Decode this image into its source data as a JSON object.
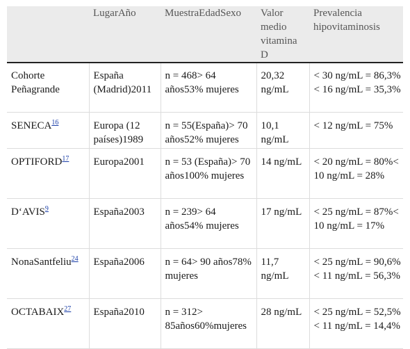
{
  "table": {
    "headers": [
      "",
      "LugarAño",
      "MuestraEdadSexo",
      "Valor medio vitamina D",
      "Prevalencia hipovitaminosis"
    ],
    "rows": [
      {
        "study": "Cohorte Peñagrande",
        "ref": "",
        "lugar": "España (Madrid)2011",
        "muestra": "n = 468> 64 años53% mujeres",
        "valor": "20,32 ng/mL",
        "prevalencia": "< 30 ng/mL = 86,3%< 16 ng/mL = 35,3%"
      },
      {
        "study": "SENECA",
        "ref": "16",
        "lugar": "Europa (12 países)1989",
        "muestra": "n = 55(España)> 70 años52% mujeres",
        "valor": "10,1 ng/mL",
        "prevalencia": "< 12 ng/mL = 75%"
      },
      {
        "study": "OPTIFORD",
        "ref": "17",
        "lugar": "Europa2001",
        "muestra": "n = 53 (España)> 70 años100% mujeres",
        "valor": "14 ng/mL",
        "prevalencia": "< 20 ng/mL = 80%< 10 ng/mL = 28%"
      },
      {
        "study": "D‘AVIS",
        "ref": "9",
        "lugar": "España2003",
        "muestra": "n = 239> 64 años54% mujeres",
        "valor": "17 ng/mL",
        "prevalencia": "< 25 ng/mL = 87%< 10 ng/mL = 17%"
      },
      {
        "study": "NonaSantfeliu",
        "ref": "24",
        "lugar": "España2006",
        "muestra": "n = 64> 90 años78% mujeres",
        "valor": "11,7 ng/mL",
        "prevalencia": "< 25 ng/mL = 90,6%< 11 ng/mL = 56,3%"
      },
      {
        "study": "OCTABAIX",
        "ref": "27",
        "lugar": "España2010",
        "muestra": "n = 312> 85años60%mujeres",
        "valor": "28 ng/mL",
        "prevalencia": "< 25 ng/mL = 52,5%< 11 ng/mL = 14,4%"
      }
    ]
  },
  "colors": {
    "header_bg": "#ebebeb",
    "link": "#1a3ea8",
    "rule": "#222222"
  }
}
